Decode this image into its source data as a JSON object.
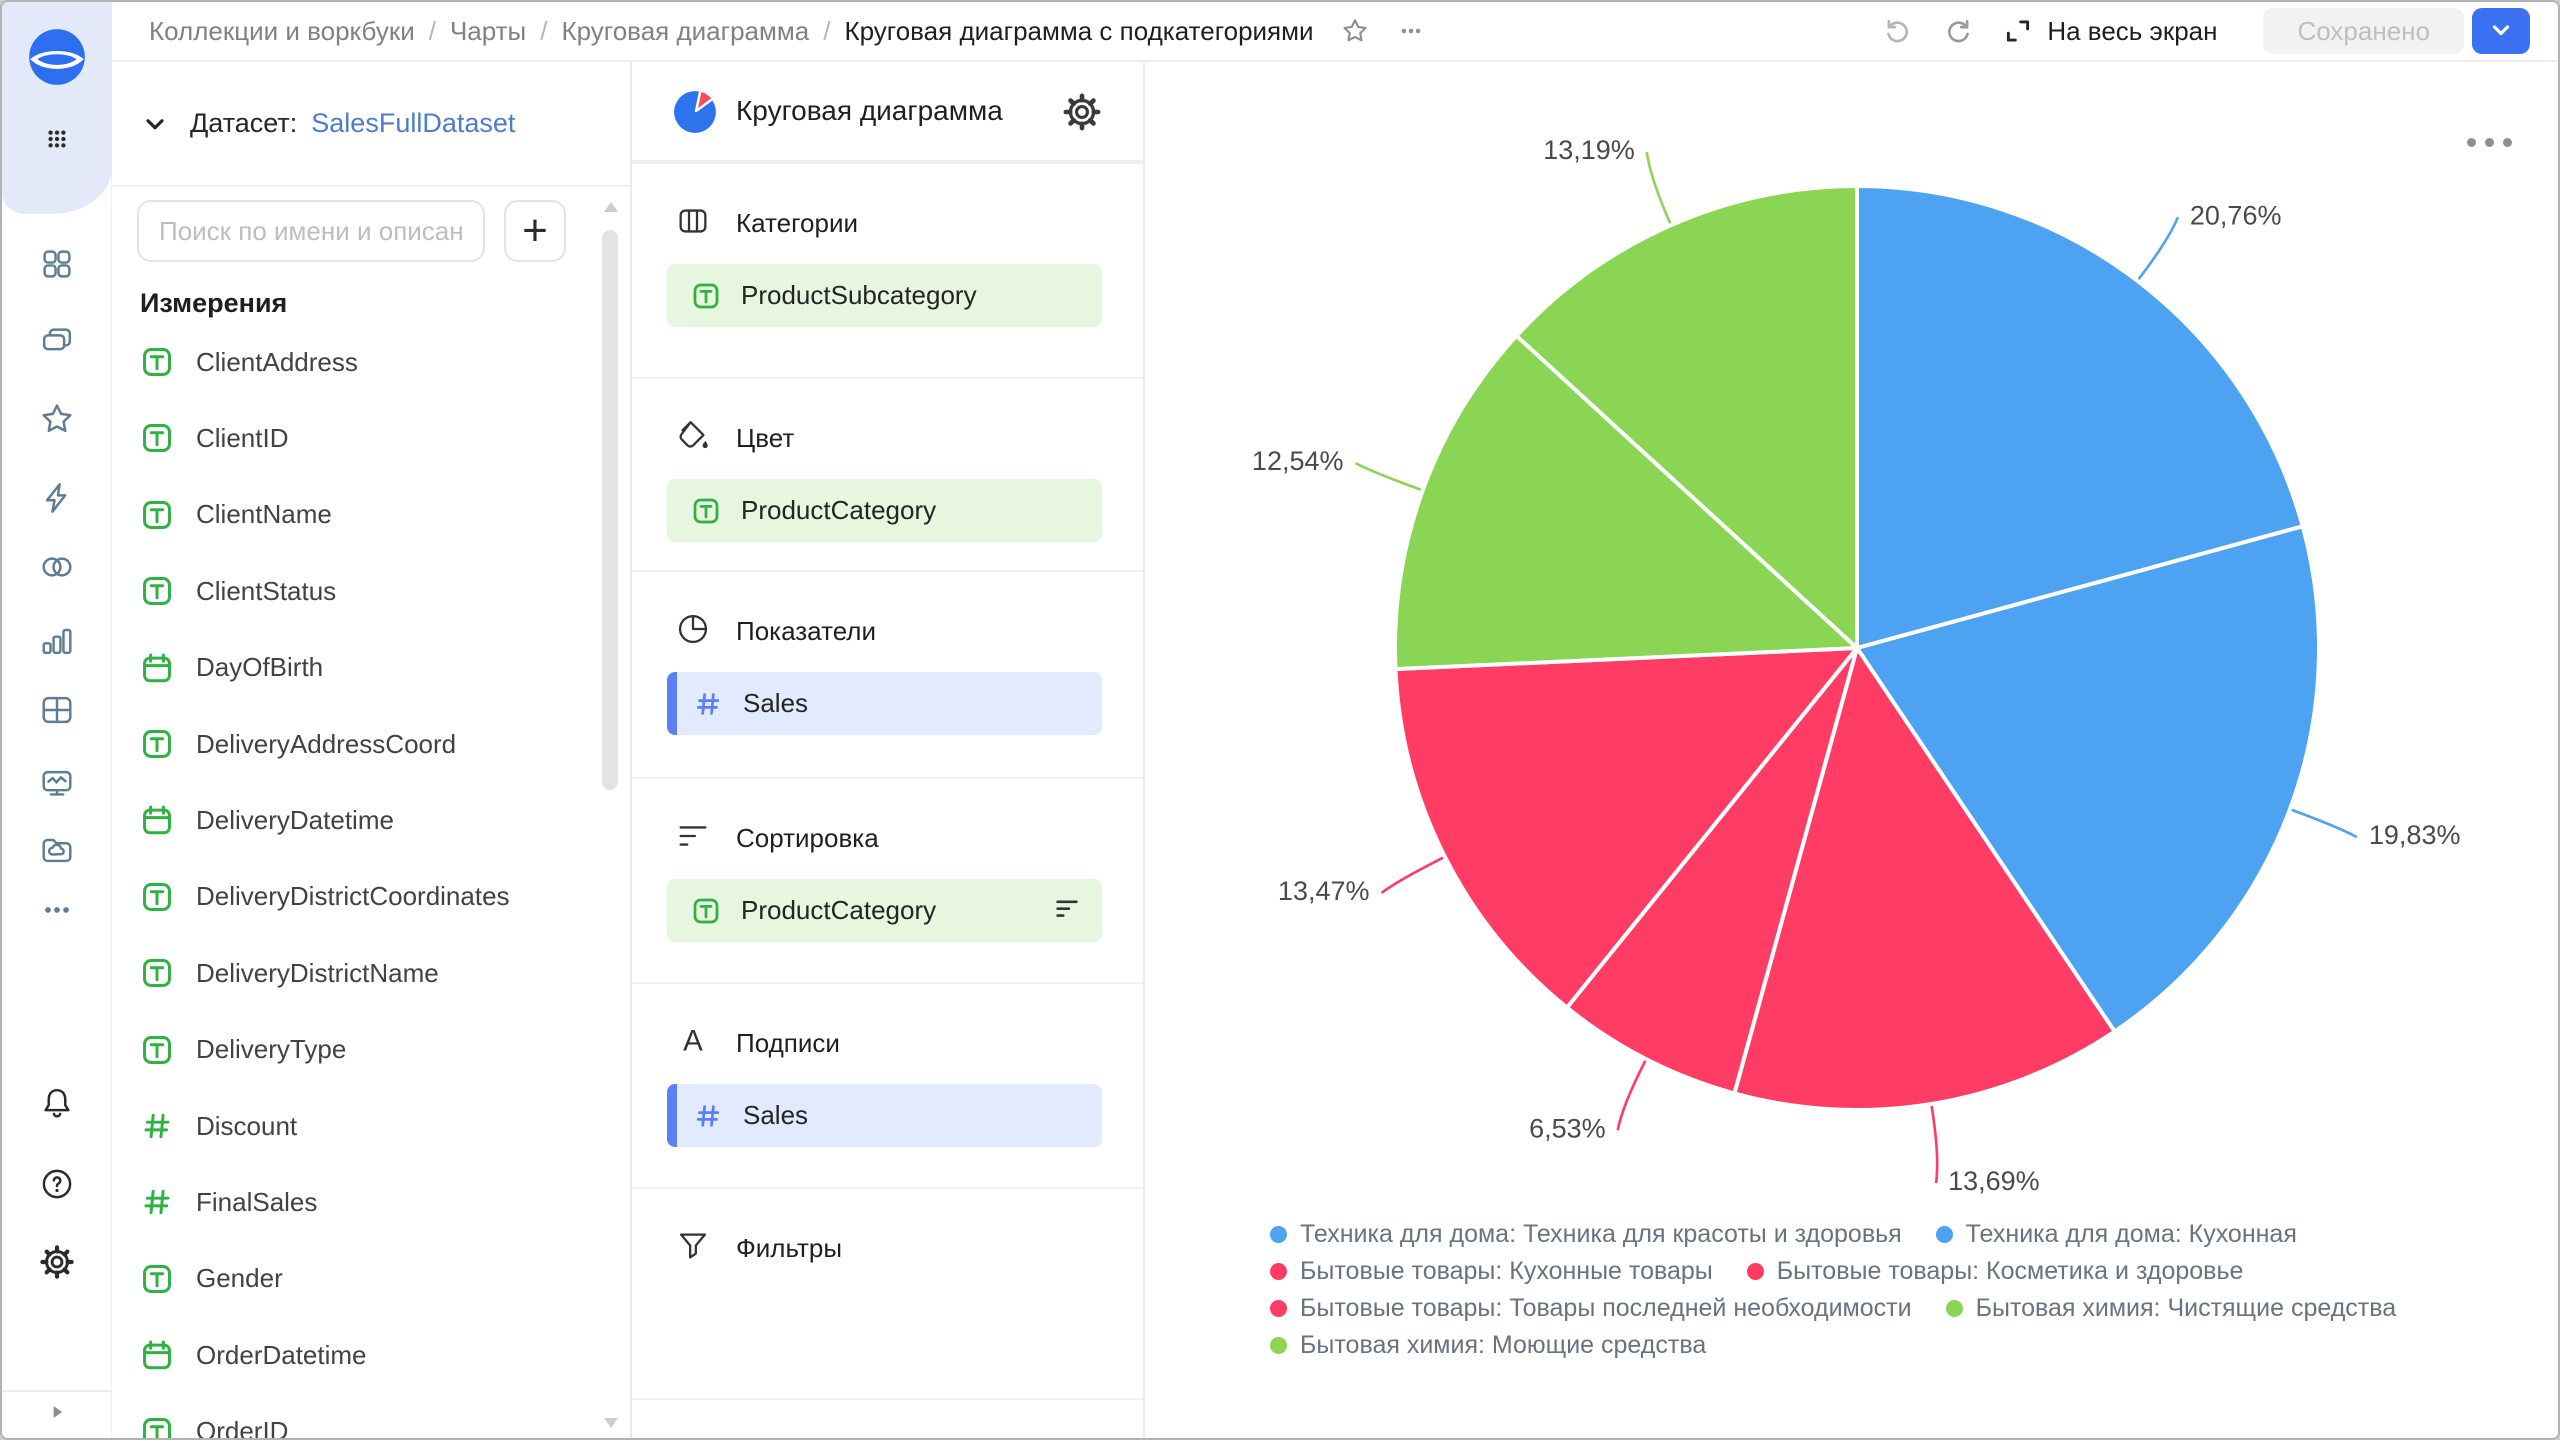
{
  "topbar": {
    "breadcrumb": [
      "Коллекции и воркбуки",
      "Чарты",
      "Круговая диаграмма"
    ],
    "current_page": "Круговая диаграмма с подкатегориями",
    "separator": "/",
    "fullscreen_label": "На весь экран",
    "save_button": "Сохранено"
  },
  "sidebar": {
    "icons": [
      "datalens-logo",
      "apps-grid",
      "dashboards",
      "collections",
      "favorites",
      "quick-actions",
      "datasets",
      "charts",
      "tables",
      "monitoring",
      "storage",
      "more",
      "notifications",
      "help",
      "settings",
      "expand-panel"
    ]
  },
  "dataset_panel": {
    "collapse_label": "Датасет:",
    "dataset_name": "SalesFullDataset",
    "search_placeholder": "Поиск по имени и описани",
    "add_button": "+",
    "section_title": "Измерения",
    "fields": [
      {
        "name": "ClientAddress",
        "type": "string"
      },
      {
        "name": "ClientID",
        "type": "string"
      },
      {
        "name": "ClientName",
        "type": "string"
      },
      {
        "name": "ClientStatus",
        "type": "string"
      },
      {
        "name": "DayOfBirth",
        "type": "date"
      },
      {
        "name": "DeliveryAddressCoord",
        "type": "string"
      },
      {
        "name": "DeliveryDatetime",
        "type": "date"
      },
      {
        "name": "DeliveryDistrictCoordinates",
        "type": "string"
      },
      {
        "name": "DeliveryDistrictName",
        "type": "string"
      },
      {
        "name": "DeliveryType",
        "type": "string"
      },
      {
        "name": "Discount",
        "type": "number"
      },
      {
        "name": "FinalSales",
        "type": "number"
      },
      {
        "name": "Gender",
        "type": "string"
      },
      {
        "name": "OrderDatetime",
        "type": "date"
      },
      {
        "name": "OrderID",
        "type": "string"
      }
    ]
  },
  "config_panel": {
    "chart_type": "Круговая диаграмма",
    "sections": [
      {
        "title": "Категории",
        "icon": "columns-icon",
        "chips": [
          {
            "label": "ProductSubcategory",
            "kind": "dimension",
            "field_type": "string"
          }
        ]
      },
      {
        "title": "Цвет",
        "icon": "paint-bucket-icon",
        "chips": [
          {
            "label": "ProductCategory",
            "kind": "dimension",
            "field_type": "string"
          }
        ]
      },
      {
        "title": "Показатели",
        "icon": "pie-section-icon",
        "chips": [
          {
            "label": "Sales",
            "kind": "measure",
            "field_type": "number"
          }
        ]
      },
      {
        "title": "Сортировка",
        "icon": "sort-icon",
        "chips": [
          {
            "label": "ProductCategory",
            "kind": "dimension",
            "field_type": "string",
            "trailing_icon": "sort-order-icon"
          }
        ]
      },
      {
        "title": "Подписи",
        "icon": "labels-icon",
        "chips": [
          {
            "label": "Sales",
            "kind": "measure",
            "field_type": "number"
          }
        ]
      },
      {
        "title": "Фильтры",
        "icon": "filter-icon",
        "chips": []
      }
    ]
  },
  "chart_data": {
    "type": "pie",
    "title": "",
    "legend_position": "bottom",
    "colors": {
      "blue": "#4DA2F1",
      "pink": "#FF3D64",
      "green": "#8AD554"
    },
    "slices": [
      {
        "name": "Техника для дома: Техника для красоты и здоровья",
        "value": 20.76,
        "label": "20,76%",
        "color": "blue"
      },
      {
        "name": "Техника для дома: Кухонная",
        "value": 19.83,
        "label": "19,83%",
        "color": "blue"
      },
      {
        "name": "Бытовые товары: Кухонные товары",
        "value": 13.69,
        "label": "13,69%",
        "color": "pink"
      },
      {
        "name": "Бытовые товары: Косметика и здоровье",
        "value": 6.53,
        "label": "6,53%",
        "color": "pink"
      },
      {
        "name": "Бытовые товары: Товары последней необходимости",
        "value": 13.47,
        "label": "13,47%",
        "color": "pink"
      },
      {
        "name": "Бытовая химия: Чистящие средства",
        "value": 12.54,
        "label": "12,54%",
        "color": "green"
      },
      {
        "name": "Бытовая химия: Моющие средства",
        "value": 13.19,
        "label": "13,19%",
        "color": "green"
      }
    ],
    "legend_rows": [
      [
        {
          "color": "blue",
          "label": "Техника для дома: Техника для красоты и здоровья"
        },
        {
          "color": "blue",
          "label": "Техника для дома: Кухонная"
        }
      ],
      [
        {
          "color": "pink",
          "label": "Бытовые товары: Кухонные товары"
        },
        {
          "color": "pink",
          "label": "Бытовые товары: Косметика и здоровье"
        }
      ],
      [
        {
          "color": "pink",
          "label": "Бытовые товары: Товары последней необходимости"
        },
        {
          "color": "green",
          "label": "Бытовая химия: Чистящие средства"
        }
      ],
      [
        {
          "color": "green",
          "label": "Бытовая химия: Моющие средства"
        }
      ]
    ]
  }
}
